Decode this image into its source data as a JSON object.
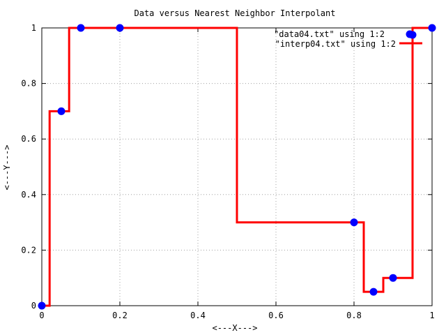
{
  "chart_data": {
    "type": "line",
    "title": "Data versus Nearest Neighbor Interpolant",
    "xlabel": "<---X--->",
    "ylabel": "<---Y--->",
    "xlim": [
      0,
      1
    ],
    "ylim": [
      0,
      1
    ],
    "x_ticks": [
      0,
      0.2,
      0.4,
      0.6,
      0.8,
      1
    ],
    "x_tick_labels": [
      "0",
      "0.2",
      "0.4",
      "0.6",
      "0.8",
      "1"
    ],
    "y_ticks": [
      0,
      0.2,
      0.4,
      0.6,
      0.8,
      1
    ],
    "y_tick_labels": [
      "0",
      "0.2",
      "0.4",
      "0.6",
      "0.8",
      "1"
    ],
    "grid": true,
    "legend_position": "top-right",
    "series": [
      {
        "name": "\"data04.txt\" using 1:2",
        "style": "points",
        "color": "#0000ff",
        "x": [
          0.0,
          0.05,
          0.1,
          0.2,
          0.8,
          0.85,
          0.9,
          0.95,
          1.0
        ],
        "y": [
          0.0,
          0.7,
          1.0,
          1.0,
          0.3,
          0.05,
          0.1,
          0.975,
          1.0
        ]
      },
      {
        "name": "\"interp04.txt\" using 1:2",
        "style": "step",
        "color": "#ff0000",
        "x": [
          0.0,
          0.02,
          0.02,
          0.07,
          0.07,
          0.5,
          0.5,
          0.825,
          0.825,
          0.875,
          0.875,
          0.95,
          0.95,
          1.0
        ],
        "y": [
          0.0,
          0.0,
          0.7,
          0.7,
          1.0,
          1.0,
          0.3,
          0.3,
          0.05,
          0.05,
          0.1,
          0.1,
          1.0,
          1.0
        ]
      }
    ]
  }
}
